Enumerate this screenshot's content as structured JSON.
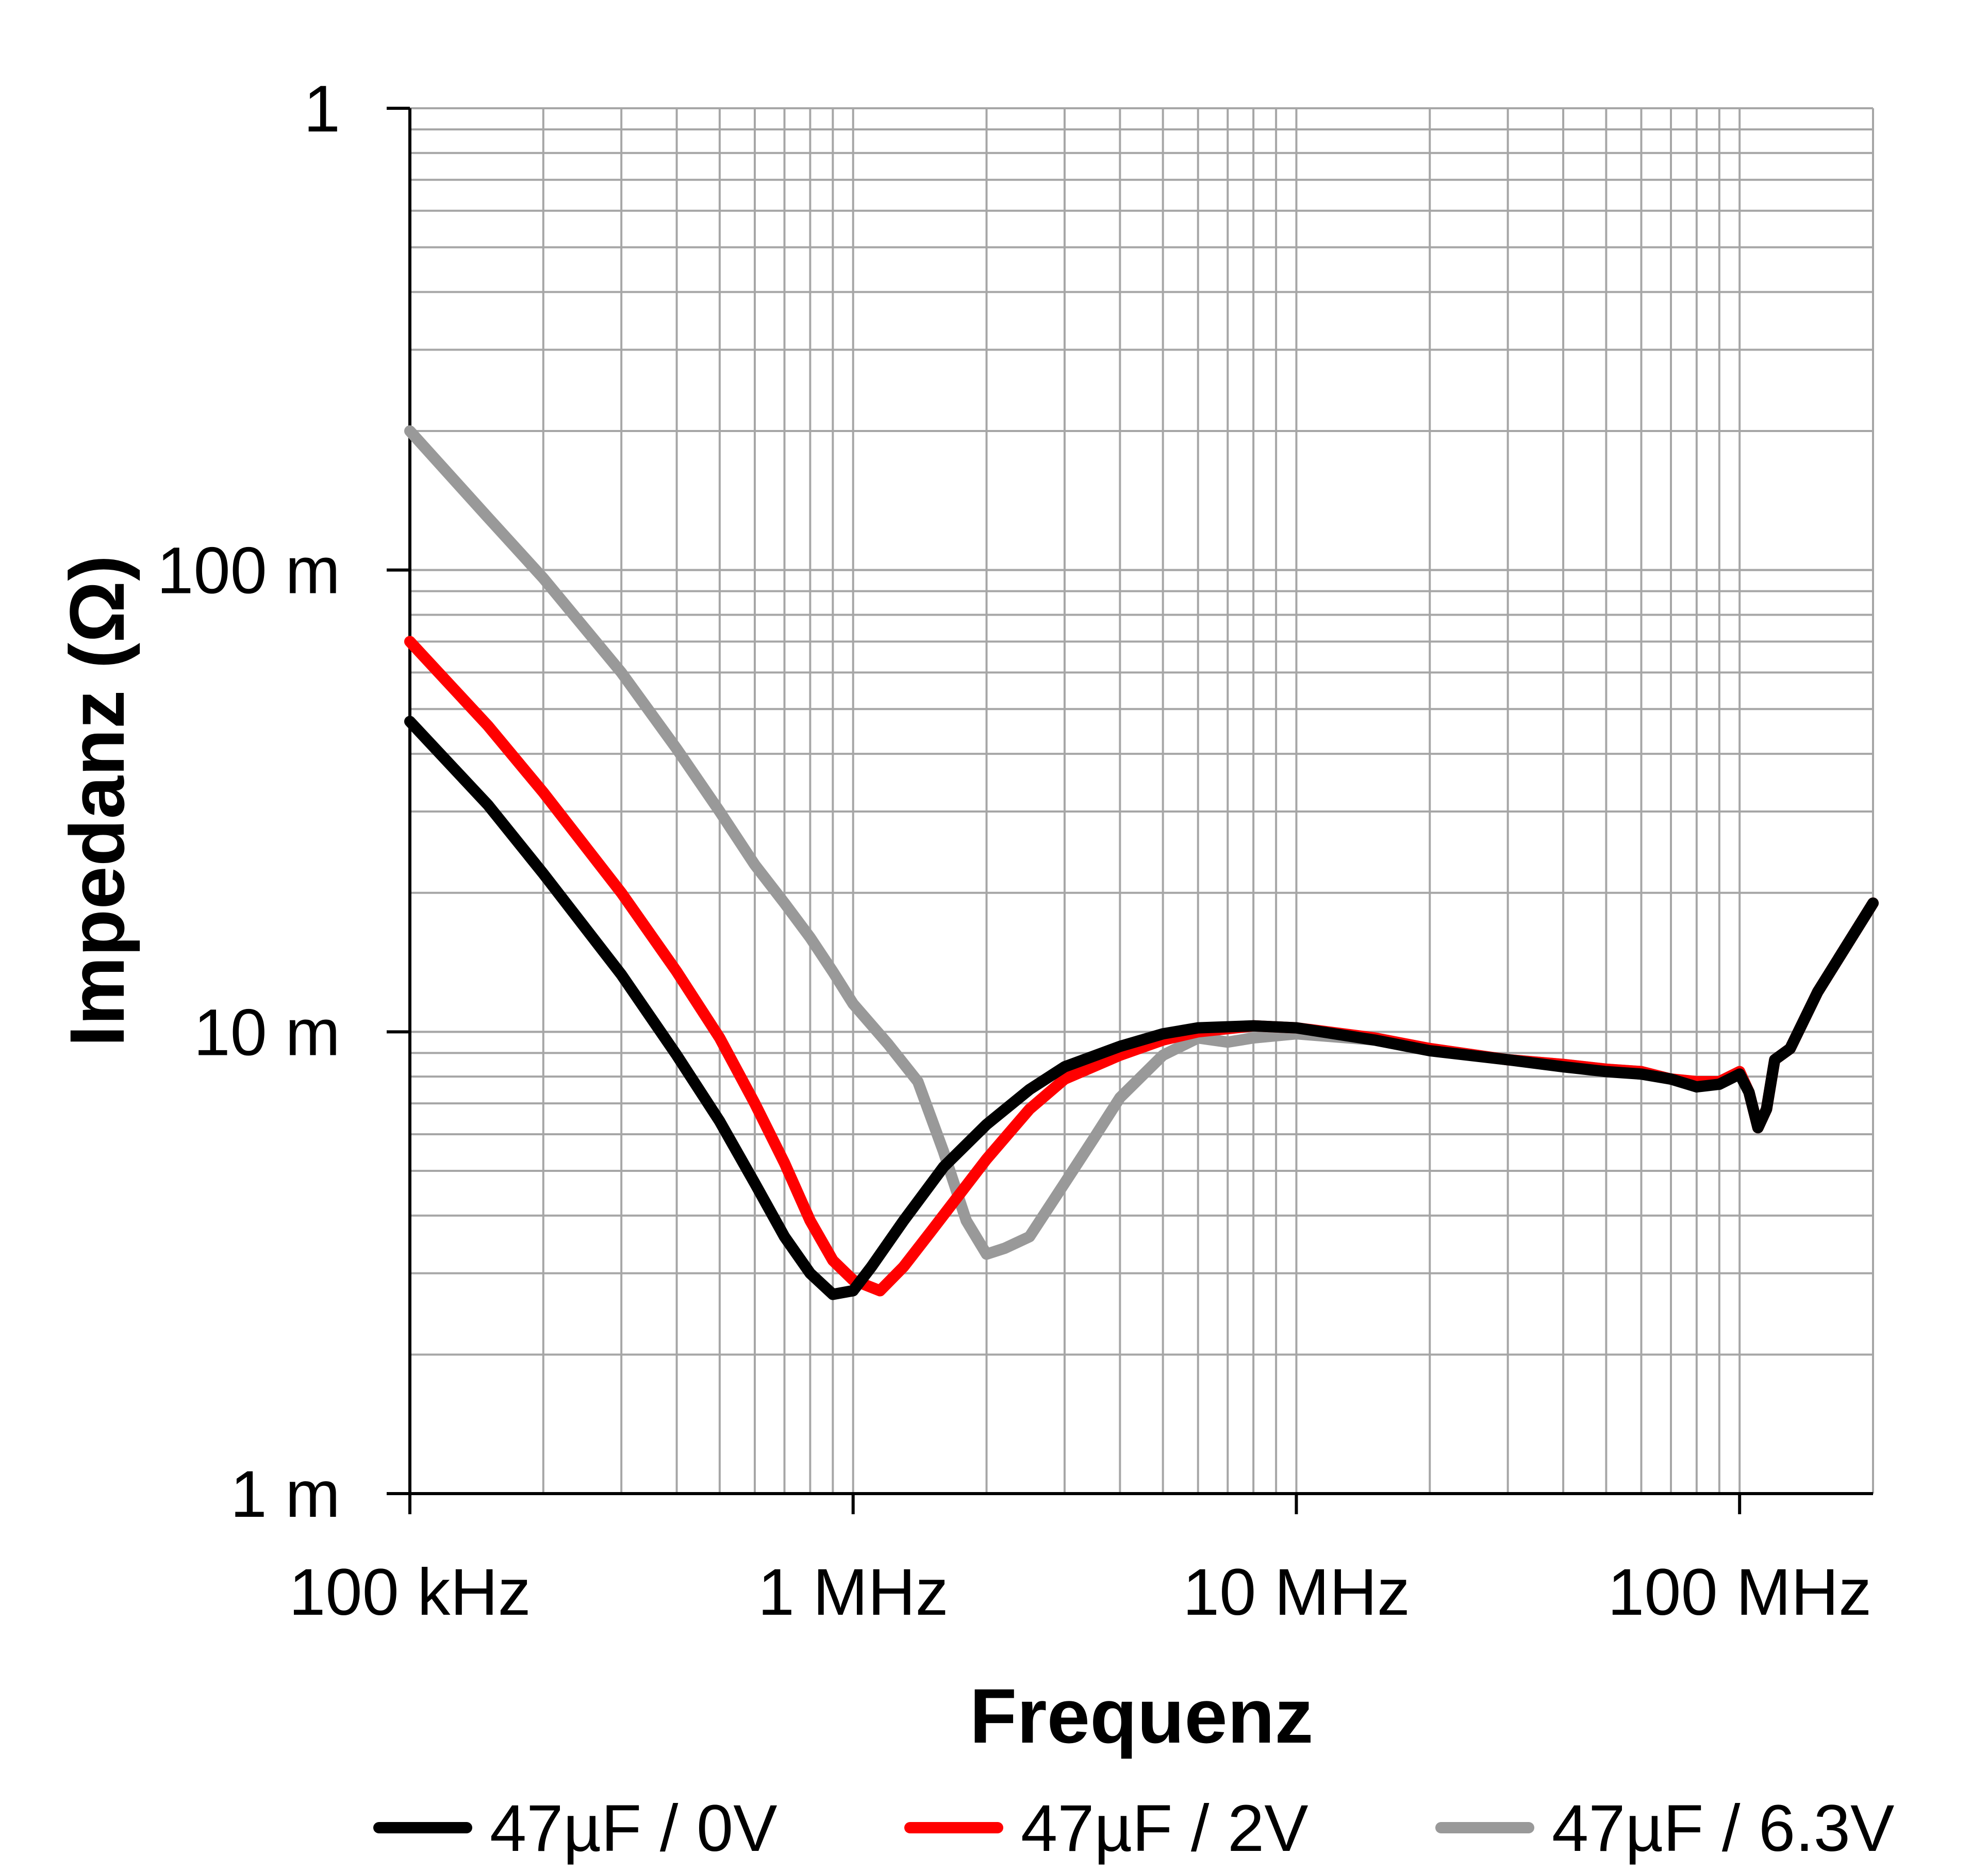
{
  "chart_data": {
    "type": "line",
    "xlabel": "Frequenz",
    "ylabel": "Impedanz (Ω)",
    "x_scale": "log",
    "y_scale": "log",
    "xlim_hz": [
      100000,
      200000000
    ],
    "ylim_ohm": [
      0.001,
      1
    ],
    "grid": true,
    "legend_position": "bottom",
    "x_ticks": [
      {
        "value": 100000,
        "label": "100 kHz"
      },
      {
        "value": 1000000,
        "label": "1 MHz"
      },
      {
        "value": 10000000,
        "label": "10 MHz"
      },
      {
        "value": 100000000,
        "label": "100 MHz"
      }
    ],
    "y_ticks": [
      {
        "value": 1,
        "label": "1"
      },
      {
        "value": 0.1,
        "label": "100 m"
      },
      {
        "value": 0.01,
        "label": "10 m"
      },
      {
        "value": 0.001,
        "label": "1 m"
      }
    ],
    "series": [
      {
        "name": "47µF / 0V",
        "color": "#000000",
        "points": [
          [
            100000,
            0.047
          ],
          [
            150000,
            0.031
          ],
          [
            200000,
            0.022
          ],
          [
            300000,
            0.0133
          ],
          [
            400000,
            0.0089
          ],
          [
            500000,
            0.0064
          ],
          [
            600000,
            0.0047
          ],
          [
            700000,
            0.0036
          ],
          [
            800000,
            0.003
          ],
          [
            900000,
            0.0027
          ],
          [
            1000000,
            0.00275
          ],
          [
            1100000,
            0.0031
          ],
          [
            1300000,
            0.0039
          ],
          [
            1600000,
            0.0051
          ],
          [
            2000000,
            0.0063
          ],
          [
            2500000,
            0.0075
          ],
          [
            3000000,
            0.0084
          ],
          [
            4000000,
            0.0093
          ],
          [
            5000000,
            0.0099
          ],
          [
            6000000,
            0.0102
          ],
          [
            8000000,
            0.0103
          ],
          [
            10000000,
            0.0102
          ],
          [
            15000000,
            0.0096
          ],
          [
            20000000,
            0.0091
          ],
          [
            30000000,
            0.0087
          ],
          [
            40000000,
            0.0084
          ],
          [
            50000000,
            0.0082
          ],
          [
            60000000,
            0.0081
          ],
          [
            70000000,
            0.0079
          ],
          [
            80000000,
            0.0076
          ],
          [
            90000000,
            0.0077
          ],
          [
            100000000,
            0.0081
          ],
          [
            105000000,
            0.0074
          ],
          [
            110000000,
            0.0062
          ],
          [
            115000000,
            0.0068
          ],
          [
            120000000,
            0.0087
          ],
          [
            130000000,
            0.0092
          ],
          [
            150000000,
            0.0122
          ],
          [
            200000000,
            0.019
          ]
        ]
      },
      {
        "name": "47µF / 2V",
        "color": "#ff0000",
        "points": [
          [
            100000,
            0.07
          ],
          [
            150000,
            0.046
          ],
          [
            200000,
            0.033
          ],
          [
            300000,
            0.02
          ],
          [
            400000,
            0.0135
          ],
          [
            500000,
            0.0097
          ],
          [
            600000,
            0.007
          ],
          [
            700000,
            0.0052
          ],
          [
            800000,
            0.0039
          ],
          [
            900000,
            0.0032
          ],
          [
            1000000,
            0.0029
          ],
          [
            1150000,
            0.00275
          ],
          [
            1300000,
            0.0031
          ],
          [
            1500000,
            0.0037
          ],
          [
            2000000,
            0.0053
          ],
          [
            2500000,
            0.0068
          ],
          [
            3000000,
            0.0079
          ],
          [
            4000000,
            0.0089
          ],
          [
            5000000,
            0.0096
          ],
          [
            6000000,
            0.01
          ],
          [
            8000000,
            0.0103
          ],
          [
            10000000,
            0.0102
          ],
          [
            15000000,
            0.0097
          ],
          [
            20000000,
            0.0092
          ],
          [
            30000000,
            0.0087
          ],
          [
            40000000,
            0.0085
          ],
          [
            50000000,
            0.0083
          ],
          [
            60000000,
            0.0082
          ],
          [
            70000000,
            0.0079
          ],
          [
            80000000,
            0.0078
          ],
          [
            90000000,
            0.0078
          ],
          [
            100000000,
            0.0082
          ],
          [
            105000000,
            0.0074
          ],
          [
            110000000,
            0.0062
          ],
          [
            115000000,
            0.0068
          ],
          [
            120000000,
            0.0087
          ],
          [
            130000000,
            0.0092
          ],
          [
            150000000,
            0.0122
          ],
          [
            200000000,
            0.019
          ]
        ]
      },
      {
        "name": "47µF / 6.3V",
        "color": "#999999",
        "points": [
          [
            100000,
            0.2
          ],
          [
            150000,
            0.13
          ],
          [
            200000,
            0.096
          ],
          [
            300000,
            0.06
          ],
          [
            400000,
            0.041
          ],
          [
            500000,
            0.03
          ],
          [
            600000,
            0.023
          ],
          [
            700000,
            0.019
          ],
          [
            800000,
            0.016
          ],
          [
            900000,
            0.0135
          ],
          [
            1000000,
            0.0115
          ],
          [
            1200000,
            0.0094
          ],
          [
            1400000,
            0.0078
          ],
          [
            1600000,
            0.0055
          ],
          [
            1800000,
            0.0039
          ],
          [
            2000000,
            0.0033
          ],
          [
            2200000,
            0.0034
          ],
          [
            2500000,
            0.0036
          ],
          [
            3000000,
            0.0047
          ],
          [
            3500000,
            0.0059
          ],
          [
            4000000,
            0.0072
          ],
          [
            5000000,
            0.0089
          ],
          [
            6000000,
            0.0097
          ],
          [
            7000000,
            0.0095
          ],
          [
            8000000,
            0.0097
          ],
          [
            10000000,
            0.0099
          ],
          [
            15000000,
            0.0096
          ],
          [
            20000000,
            0.0092
          ],
          [
            30000000,
            0.0087
          ],
          [
            40000000,
            0.0085
          ],
          [
            50000000,
            0.0083
          ],
          [
            60000000,
            0.0082
          ],
          [
            70000000,
            0.0079
          ],
          [
            80000000,
            0.0078
          ],
          [
            90000000,
            0.0078
          ],
          [
            100000000,
            0.0082
          ],
          [
            105000000,
            0.0074
          ],
          [
            110000000,
            0.0062
          ],
          [
            115000000,
            0.0068
          ],
          [
            120000000,
            0.0087
          ],
          [
            130000000,
            0.0092
          ],
          [
            150000000,
            0.0122
          ],
          [
            200000000,
            0.019
          ]
        ]
      }
    ]
  }
}
